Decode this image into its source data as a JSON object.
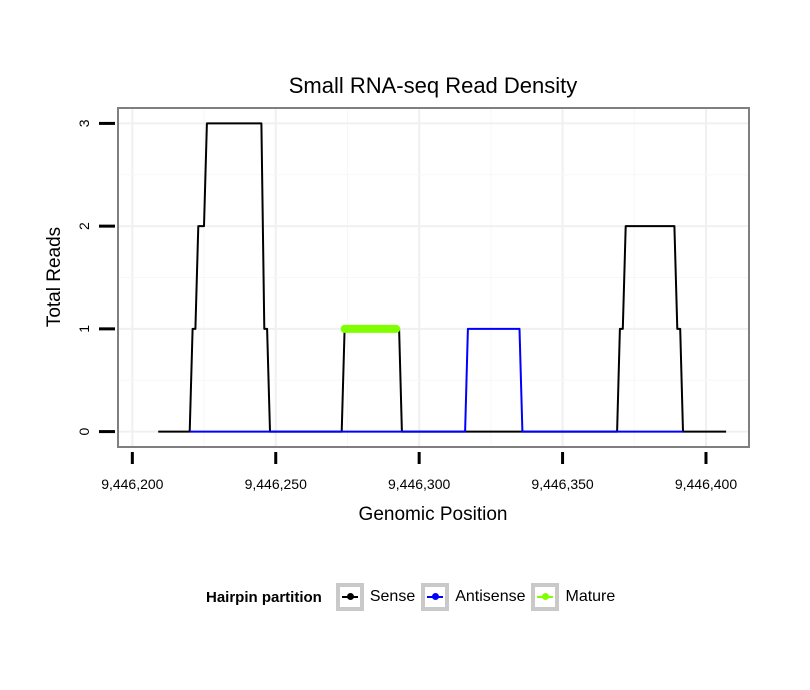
{
  "chart_data": {
    "type": "line",
    "title": "Small RNA-seq Read Density",
    "xlabel": "Genomic Position",
    "ylabel": "Total Reads",
    "xlim": [
      9446195,
      9446415
    ],
    "ylim": [
      -0.15,
      3.15
    ],
    "x_ticks": [
      9446200,
      9446250,
      9446300,
      9446350,
      9446400
    ],
    "x_tick_labels": [
      "9,446,200",
      "9,446,250",
      "9,446,300",
      "9,446,350",
      "9,446,400"
    ],
    "y_ticks": [
      0,
      1,
      2,
      3
    ],
    "y_tick_labels": [
      "0",
      "1",
      "2",
      "3"
    ],
    "grid": true,
    "legend_position": "bottom",
    "legend_title": "Hairpin partition",
    "series": [
      {
        "name": "Sense",
        "color": "#000000",
        "x": [
          9446209,
          9446220,
          9446221,
          9446222,
          9446223,
          9446225,
          9446226,
          9446227,
          9446245,
          9446246,
          9446247,
          9446248,
          9446249,
          9446273,
          9446274,
          9446293,
          9446294,
          9446369,
          9446370,
          9446371,
          9446372,
          9446389,
          9446390,
          9446391,
          9446392,
          9446393,
          9446407
        ],
        "y": [
          0,
          0,
          1,
          1,
          2,
          2,
          3,
          3,
          3,
          1,
          1,
          0,
          0,
          0,
          1,
          1,
          0,
          0,
          1,
          1,
          2,
          2,
          1,
          1,
          0,
          0,
          0
        ]
      },
      {
        "name": "Antisense",
        "color": "#0000ff",
        "x": [
          9446220,
          9446249,
          9446274,
          9446293,
          9446316,
          9446317,
          9446335,
          9446336,
          9446369,
          9446392
        ],
        "y": [
          0,
          0,
          0,
          0,
          0,
          1,
          1,
          0,
          0,
          0
        ]
      },
      {
        "name": "Mature",
        "color": "#7fff00",
        "x": [
          9446274,
          9446292
        ],
        "y": [
          1,
          1
        ]
      }
    ]
  }
}
